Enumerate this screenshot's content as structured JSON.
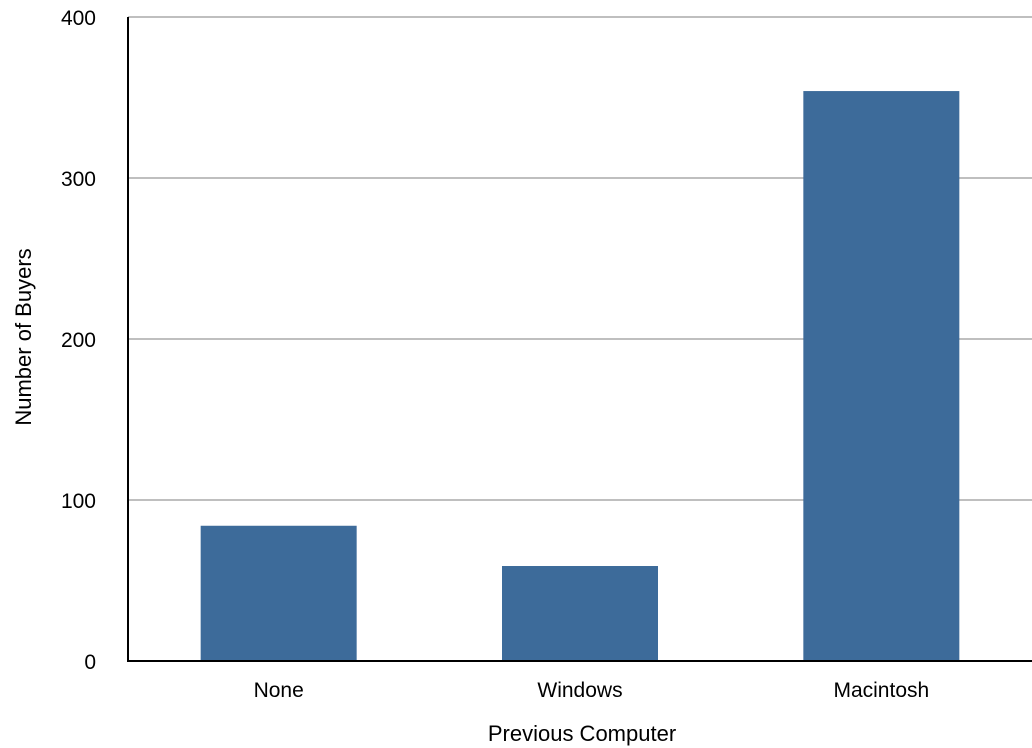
{
  "chart_data": {
    "type": "bar",
    "title": "",
    "xlabel": "Previous Computer",
    "ylabel": "Number of Buyers",
    "categories": [
      "None",
      "Windows",
      "Macintosh"
    ],
    "values": [
      84,
      59,
      354
    ],
    "ylim": [
      0,
      400
    ],
    "yticks": [
      0,
      100,
      200,
      300,
      400
    ],
    "grid": true,
    "legend": "none",
    "colors": {
      "bar": "#3d6b9a",
      "grid": "#aaaaaa",
      "axis": "#000000"
    }
  }
}
